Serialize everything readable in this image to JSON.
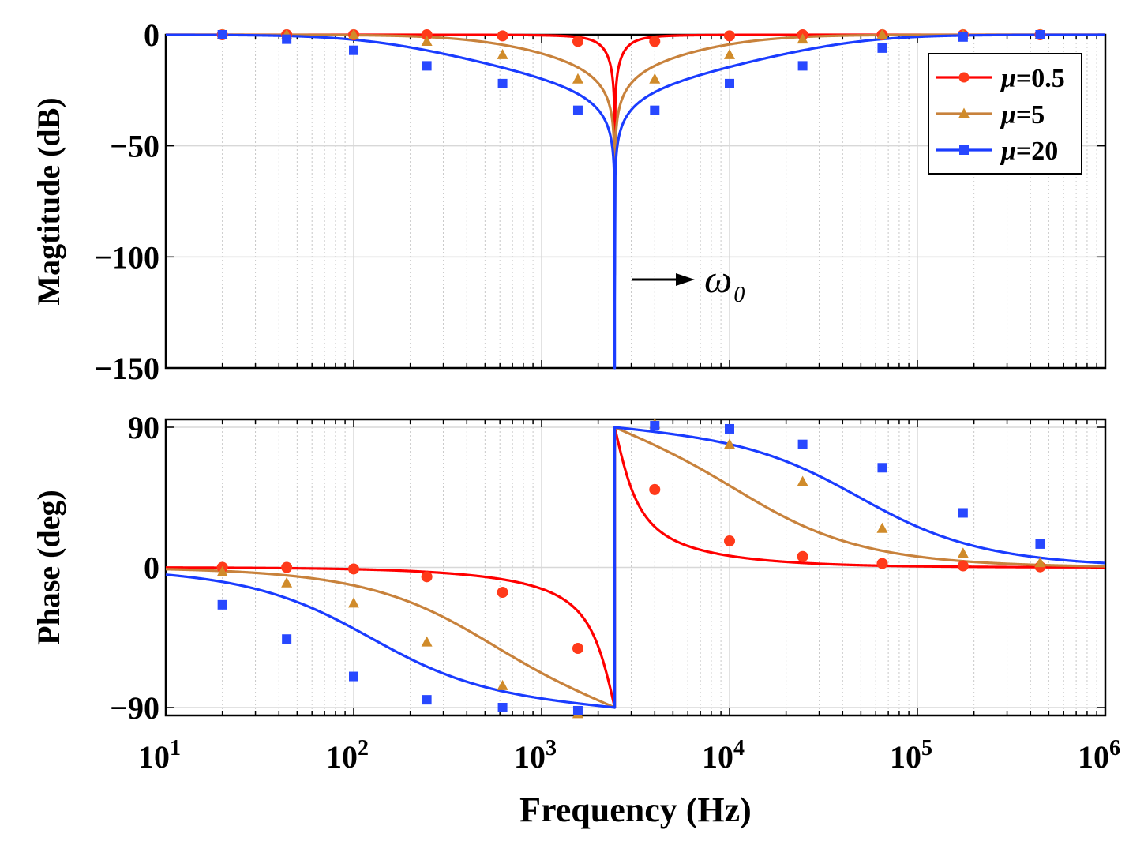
{
  "chart_data": {
    "type": "line",
    "title": "",
    "xlabel": "Frequency (Hz)",
    "xscale": "log",
    "xlim": [
      10,
      1000000
    ],
    "x_tick_labels": [
      {
        "base": "10",
        "exp": "1"
      },
      {
        "base": "10",
        "exp": "2"
      },
      {
        "base": "10",
        "exp": "3"
      },
      {
        "base": "10",
        "exp": "4"
      },
      {
        "base": "10",
        "exp": "5"
      },
      {
        "base": "10",
        "exp": "6"
      }
    ],
    "notch_frequency_hz": 2450,
    "legend_location": "top-right",
    "grid": true,
    "panels": [
      {
        "name": "magnitude",
        "ylabel": "Magtitude (dB)",
        "ylim": [
          -150,
          5
        ],
        "y_ticks": [
          0,
          -50,
          -100,
          -150
        ],
        "y_tick_labels": [
          "0",
          "−50",
          "−100",
          "−150"
        ],
        "annotation": {
          "label": "ω",
          "subscript": "0",
          "points_to": "notch"
        }
      },
      {
        "name": "phase",
        "ylabel": "Phase (deg)",
        "ylim": [
          -95,
          95
        ],
        "y_ticks": [
          90,
          0,
          -90
        ],
        "y_tick_labels": [
          "90",
          "0",
          "−90"
        ]
      }
    ],
    "series": [
      {
        "name": "μ=0.5",
        "mu_symbol": "μ",
        "mu_value": "=0.5",
        "mu": 0.5,
        "color": "#ff0000",
        "marker_color": "#ff3a1a",
        "marker": "circle",
        "marker_x": [
          20,
          44,
          100,
          245,
          620,
          1560,
          4000,
          10000,
          24500,
          65000,
          175000,
          450000
        ],
        "magnitude_db": [
          0,
          0,
          0,
          0,
          -0.5,
          -3,
          -3,
          -0.5,
          0,
          0,
          0,
          0
        ],
        "phase_deg": [
          0,
          0,
          -1,
          -6,
          -16,
          -52,
          50,
          17,
          7,
          2.5,
          1,
          0.4
        ]
      },
      {
        "name": "μ=5",
        "mu_symbol": "μ",
        "mu_value": "=5",
        "mu": 5,
        "color": "#c8823c",
        "marker_color": "#d08b2a",
        "marker": "triangle",
        "marker_x": [
          20,
          44,
          100,
          245,
          620,
          1560,
          4000,
          10000,
          24500,
          65000,
          175000,
          450000
        ],
        "magnitude_db": [
          0,
          0,
          0,
          -3,
          -9,
          -20,
          -20,
          -9,
          -2,
          0,
          0,
          0
        ],
        "phase_deg": [
          -3,
          -10,
          -23,
          -48,
          -76,
          -94,
          92,
          79,
          55,
          25,
          9,
          3
        ]
      },
      {
        "name": "μ=20",
        "mu_symbol": "μ",
        "mu_value": "=20",
        "mu": 20,
        "color": "#1a3cff",
        "marker_color": "#2848ff",
        "marker": "square",
        "marker_x": [
          20,
          44,
          100,
          245,
          620,
          1560,
          4000,
          10000,
          24500,
          65000,
          175000,
          450000
        ],
        "magnitude_db": [
          0,
          -2,
          -7,
          -14,
          -22,
          -34,
          -34,
          -22,
          -14,
          -6,
          -1,
          0
        ],
        "phase_deg": [
          -24,
          -46,
          -70,
          -85,
          -90,
          -92,
          91,
          89,
          79,
          64,
          35,
          15
        ]
      }
    ]
  }
}
